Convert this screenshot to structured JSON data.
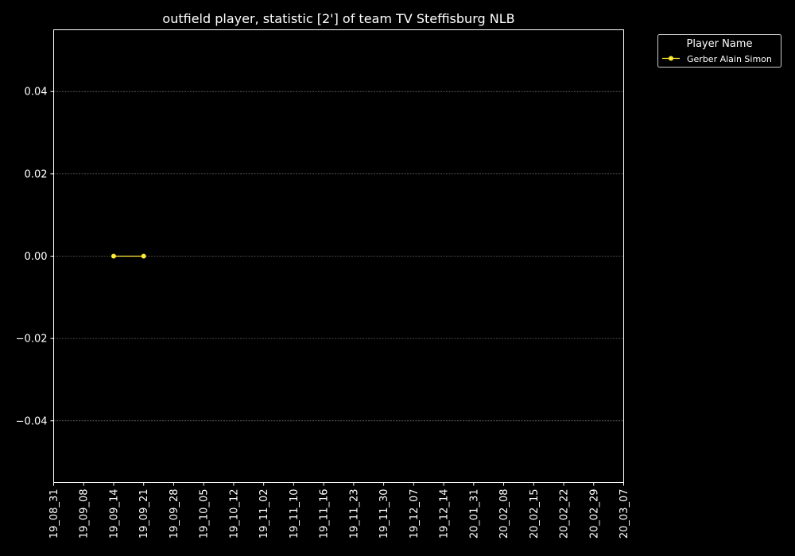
{
  "chart_data": {
    "type": "line",
    "title": "outfield player, statistic [2'] of team TV Steffisburg NLB",
    "xlabel": "",
    "ylabel": "",
    "x_ticks": [
      "19_08_31",
      "19_09_08",
      "19_09_14",
      "19_09_21",
      "19_09_28",
      "19_10_05",
      "19_10_12",
      "19_11_02",
      "19_11_10",
      "19_11_16",
      "19_11_23",
      "19_11_30",
      "19_12_07",
      "19_12_14",
      "20_01_31",
      "20_02_08",
      "20_02_15",
      "20_02_22",
      "20_02_29",
      "20_03_07"
    ],
    "y_ticks": [
      -0.04,
      -0.02,
      0.0,
      0.02,
      0.04
    ],
    "y_tick_labels": [
      "−0.04",
      "−0.02",
      "0.00",
      "0.02",
      "0.04"
    ],
    "ylim": [
      -0.055,
      0.055
    ],
    "grid": "horizontal dashed",
    "legend": {
      "title": "Player Name",
      "placement": "outside-top-right"
    },
    "series": [
      {
        "name": "Gerber Alain Simon",
        "color": "#ffee33",
        "points": [
          {
            "x": "19_09_14",
            "y": 0.0
          },
          {
            "x": "19_09_21",
            "y": 0.0
          }
        ]
      }
    ]
  }
}
